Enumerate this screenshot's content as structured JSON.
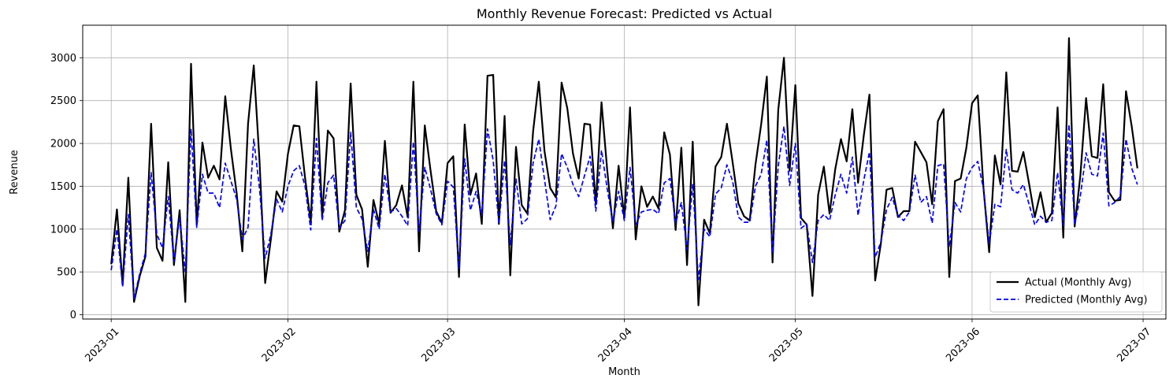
{
  "chart_data": {
    "type": "line",
    "title": "Monthly Revenue Forecast: Predicted vs Actual",
    "xlabel": "Month",
    "ylabel": "Revenue",
    "xlim": [
      "2022-12-27",
      "2023-07-05"
    ],
    "ylim": [
      -50,
      3380
    ],
    "x_ticks": [
      "2023-01",
      "2023-02",
      "2023-03",
      "2023-04",
      "2023-05",
      "2023-06",
      "2023-07"
    ],
    "y_ticks": [
      0,
      500,
      1000,
      1500,
      2000,
      2500,
      3000
    ],
    "grid": true,
    "legend_position": "lower-right",
    "x_start": "2023-01-01",
    "x_end": "2023-06-30",
    "series": [
      {
        "name": "Actual (Monthly Avg)",
        "color": "#000000",
        "style": "solid",
        "values": [
          590,
          1230,
          350,
          1600,
          150,
          450,
          680,
          2230,
          780,
          630,
          1780,
          580,
          1220,
          150,
          2930,
          1050,
          2010,
          1600,
          1740,
          1580,
          2550,
          1930,
          1420,
          740,
          2230,
          2910,
          1810,
          370,
          880,
          1440,
          1320,
          1880,
          2210,
          2200,
          1600,
          1080,
          2720,
          1150,
          2150,
          2060,
          970,
          1220,
          2700,
          1400,
          1230,
          560,
          1340,
          1060,
          2030,
          1190,
          1280,
          1510,
          1140,
          2720,
          740,
          2210,
          1690,
          1210,
          1070,
          1770,
          1850,
          440,
          2220,
          1400,
          1650,
          1060,
          2790,
          2800,
          1060,
          2320,
          460,
          1960,
          1280,
          1180,
          2140,
          2720,
          1910,
          1480,
          1370,
          2710,
          2410,
          1880,
          1590,
          2230,
          2220,
          1290,
          2480,
          1690,
          1010,
          1740,
          1130,
          2420,
          880,
          1500,
          1260,
          1380,
          1240,
          2130,
          1870,
          990,
          1950,
          580,
          2020,
          110,
          1110,
          950,
          1730,
          1840,
          2230,
          1780,
          1300,
          1150,
          1100,
          1750,
          2220,
          2780,
          610,
          2390,
          3000,
          1680,
          2680,
          1130,
          1050,
          220,
          1400,
          1730,
          1180,
          1700,
          2050,
          1790,
          2400,
          1540,
          2090,
          2570,
          400,
          830,
          1460,
          1480,
          1140,
          1210,
          1210,
          2020,
          1900,
          1780,
          1290,
          2260,
          2400,
          440,
          1560,
          1590,
          1950,
          2470,
          2560,
          1480,
          730,
          1860,
          1520,
          2830,
          1680,
          1670,
          1900,
          1530,
          1140,
          1430,
          1080,
          1190,
          2420,
          900,
          3230,
          1030,
          1630,
          2530,
          1850,
          1830,
          2690,
          1430,
          1330,
          1340,
          2610,
          2200,
          1710
        ]
      },
      {
        "name": "Predicted (Monthly Avg)",
        "color": "#0000ff",
        "style": "dashed",
        "values": [
          520,
          1000,
          330,
          1170,
          190,
          480,
          720,
          1660,
          940,
          780,
          1380,
          620,
          1140,
          500,
          2170,
          1020,
          1640,
          1420,
          1420,
          1250,
          1770,
          1560,
          1350,
          880,
          1020,
          2050,
          1480,
          660,
          940,
          1350,
          1200,
          1500,
          1680,
          1740,
          1500,
          990,
          2060,
          1100,
          1540,
          1630,
          1010,
          1100,
          2130,
          1250,
          1120,
          740,
          1230,
          1000,
          1640,
          1200,
          1240,
          1150,
          1040,
          2020,
          970,
          1720,
          1470,
          1180,
          1050,
          1560,
          1490,
          540,
          1820,
          1220,
          1440,
          1160,
          2170,
          1800,
          1060,
          1800,
          820,
          1590,
          1060,
          1120,
          1770,
          2050,
          1580,
          1110,
          1270,
          1880,
          1720,
          1520,
          1380,
          1620,
          1850,
          1210,
          1920,
          1470,
          1080,
          1440,
          1100,
          1720,
          1050,
          1200,
          1220,
          1230,
          1180,
          1540,
          1590,
          1070,
          1310,
          760,
          1530,
          410,
          1000,
          910,
          1410,
          1480,
          1750,
          1560,
          1140,
          1080,
          1080,
          1500,
          1640,
          2040,
          720,
          1740,
          2200,
          1510,
          2000,
          1010,
          1060,
          610,
          1100,
          1170,
          1100,
          1400,
          1640,
          1420,
          1840,
          1160,
          1570,
          1900,
          670,
          850,
          1230,
          1370,
          1160,
          1100,
          1200,
          1630,
          1310,
          1380,
          1070,
          1740,
          1760,
          790,
          1310,
          1200,
          1590,
          1720,
          1790,
          1470,
          830,
          1290,
          1260,
          1930,
          1460,
          1420,
          1520,
          1290,
          1050,
          1150,
          1080,
          1100,
          1660,
          1040,
          2220,
          1050,
          1390,
          1890,
          1640,
          1620,
          2120,
          1270,
          1310,
          1380,
          2050,
          1710,
          1520
        ]
      }
    ]
  }
}
